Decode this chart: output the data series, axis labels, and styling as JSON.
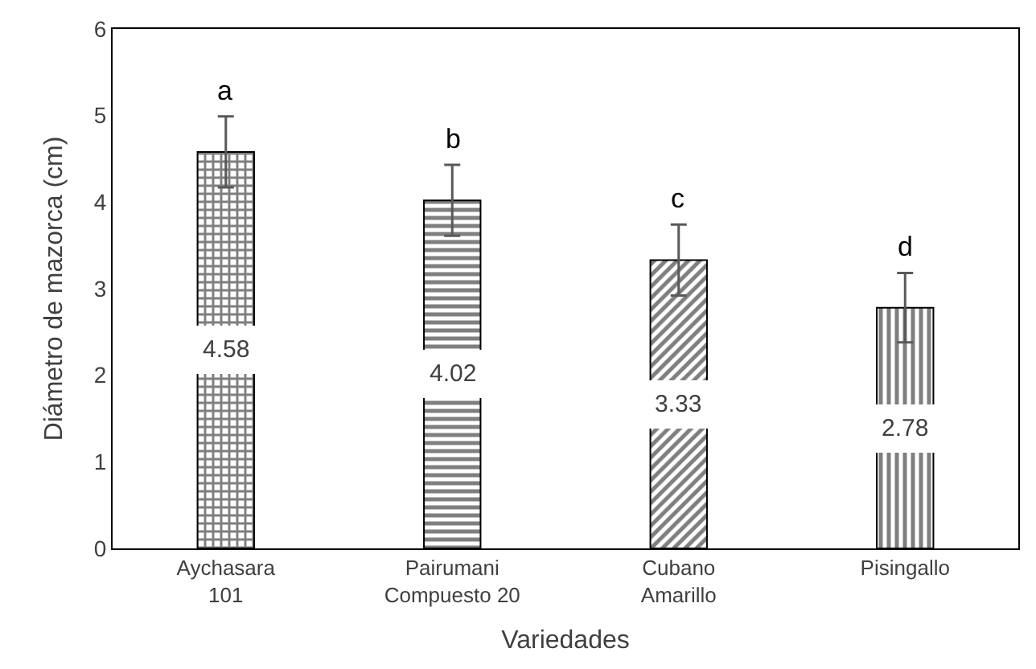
{
  "chart_data": {
    "type": "bar",
    "xlabel": "Variedades",
    "ylabel": "Diámetro de mazorca (cm)",
    "categories": [
      "Aychasara\n101",
      "Pairumani\nCompuesto 20",
      "Cubano\nAmarillo",
      "Pisingallo"
    ],
    "values": [
      4.58,
      4.02,
      3.33,
      2.78
    ],
    "errors": [
      0.41,
      0.41,
      0.41,
      0.4
    ],
    "color": "#000000",
    "data_labels": true,
    "ylim": [
      0,
      6
    ],
    "yticks": [
      0,
      1,
      2,
      3,
      4,
      5,
      6
    ],
    "annotations": [
      "a",
      "b",
      "c",
      "d"
    ]
  }
}
